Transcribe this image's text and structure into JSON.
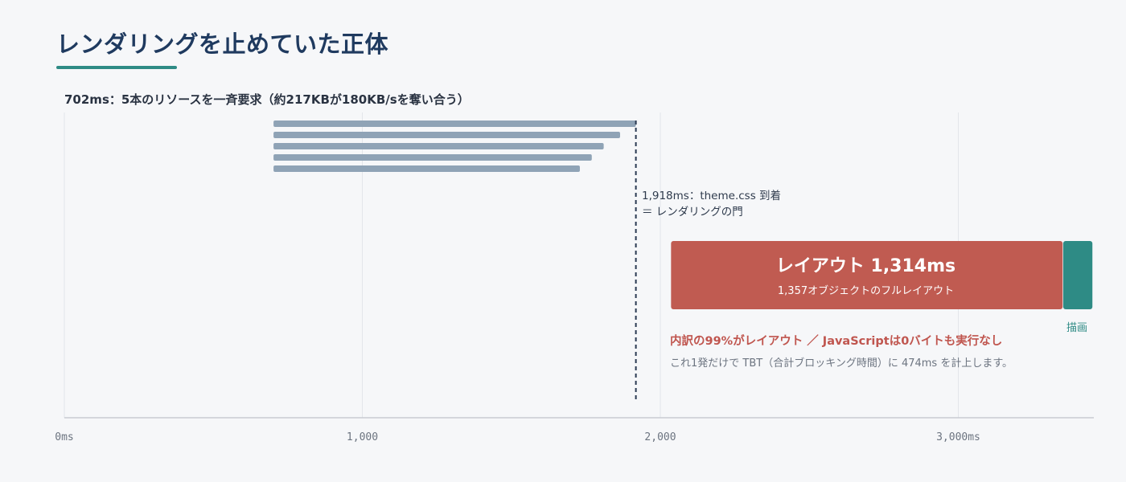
{
  "title": "レンダリングを止めていた正体",
  "subtitle": "702ms：5本のリソースを一斉要求（約217KBが180KB/sを奪い合う）",
  "gate_annotation": {
    "line1": "1,918ms：theme.css 到着",
    "line2": "＝ レンダリングの門"
  },
  "layout_block": {
    "title": "レイアウト 1,314ms",
    "subtitle": "1,357オブジェクトのフルレイアウト"
  },
  "paint_label": "描画",
  "note_red": "内訳の99%がレイアウト ／ JavaScriptは0バイトも実行なし",
  "note_gray": "これ1発だけで TBT（合計ブロッキング時間）に 474ms を計上します。",
  "colors": {
    "resource_bar": "#8fa3b6",
    "layout": "#c05b51",
    "paint": "#2e8b85",
    "gate_line": "#2a3a52",
    "grid": "#e3e6ea",
    "axis": "#c8ccd2"
  },
  "chart_data": {
    "type": "gantt",
    "x_unit": "ms",
    "xlim": [
      0,
      3450
    ],
    "x_ticks": [
      0,
      1000,
      2000,
      3000
    ],
    "x_tick_labels": [
      "0ms",
      "1,000",
      "2,000",
      "3,000ms"
    ],
    "grid": true,
    "resource_requests": [
      {
        "start": 702,
        "end": 1918
      },
      {
        "start": 702,
        "end": 1865
      },
      {
        "start": 702,
        "end": 1810
      },
      {
        "start": 702,
        "end": 1770
      },
      {
        "start": 702,
        "end": 1730
      }
    ],
    "markers": [
      {
        "x": 1918,
        "label": "theme.css 到着"
      }
    ],
    "tasks": [
      {
        "name": "レイアウト",
        "start": 2036,
        "end": 3350,
        "duration": 1314
      },
      {
        "name": "描画",
        "start": 3352,
        "end": 3450
      }
    ]
  }
}
